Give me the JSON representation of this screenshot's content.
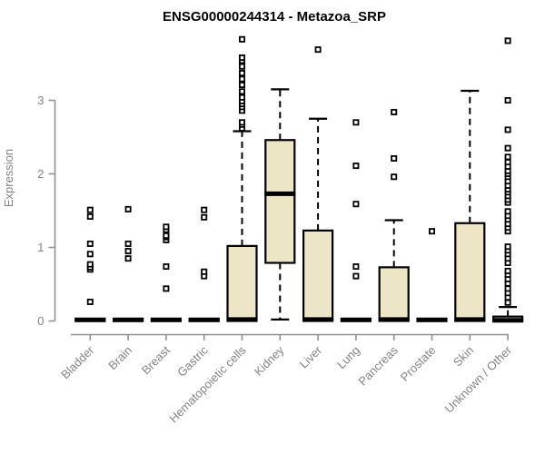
{
  "title": "ENSG00000244314 - Metazoa_SRP",
  "chart_data": {
    "type": "boxplot",
    "title": "ENSG00000244314 - Metazoa_SRP",
    "ylabel": "Expression",
    "xlabel": "",
    "ylim": [
      0,
      3.9
    ],
    "yticks": [
      "0",
      "1",
      "2",
      "3"
    ],
    "grid": false,
    "legend": false,
    "categories": [
      "Bladder",
      "Brain",
      "Breast",
      "Gastric",
      "Hematopoietic cells",
      "Kidney",
      "Liver",
      "Lung",
      "Pancreas",
      "Prostate",
      "Skin",
      "Unknown / Other"
    ],
    "series": [
      {
        "name": "Bladder",
        "q1": 0,
        "median": 0.015,
        "q3": 0.03,
        "whisker_low": 0,
        "whisker_high": 0.03,
        "outliers": [
          0.26,
          0.7,
          0.73,
          0.77,
          0.91,
          1.05,
          1.42,
          1.51
        ]
      },
      {
        "name": "Brain",
        "q1": 0,
        "median": 0.015,
        "q3": 0.03,
        "whisker_low": 0,
        "whisker_high": 0.03,
        "outliers": [
          0.85,
          0.95,
          1.05,
          1.52
        ]
      },
      {
        "name": "Breast",
        "q1": 0,
        "median": 0.015,
        "q3": 0.03,
        "whisker_low": 0,
        "whisker_high": 0.03,
        "outliers": [
          0.44,
          0.74,
          1.1,
          1.14,
          1.16,
          1.24,
          1.28
        ]
      },
      {
        "name": "Gastric",
        "q1": 0,
        "median": 0.015,
        "q3": 0.03,
        "whisker_low": 0,
        "whisker_high": 0.03,
        "outliers": [
          0.61,
          0.67,
          1.41,
          1.51
        ]
      },
      {
        "name": "Hematopoietic cells",
        "q1": 0,
        "median": 0.02,
        "q3": 1.02,
        "whisker_low": 0,
        "whisker_high": 2.58,
        "outliers": [
          2.62,
          2.67,
          2.7,
          2.86,
          2.91,
          2.95,
          2.99,
          3.04,
          3.12,
          3.21,
          3.29,
          3.37,
          3.46,
          3.54,
          3.58,
          3.83
        ]
      },
      {
        "name": "Kidney",
        "q1": 0.79,
        "median": 1.73,
        "q3": 2.46,
        "whisker_low": 0.02,
        "whisker_high": 3.15,
        "outliers": []
      },
      {
        "name": "Liver",
        "q1": 0,
        "median": 0.02,
        "q3": 1.23,
        "whisker_low": 0,
        "whisker_high": 2.75,
        "outliers": [
          3.69
        ]
      },
      {
        "name": "Lung",
        "q1": 0,
        "median": 0.015,
        "q3": 0.03,
        "whisker_low": 0,
        "whisker_high": 0.03,
        "outliers": [
          0.61,
          0.74,
          1.59,
          2.11,
          2.7
        ]
      },
      {
        "name": "Pancreas",
        "q1": 0,
        "median": 0.02,
        "q3": 0.73,
        "whisker_low": 0,
        "whisker_high": 1.37,
        "outliers": [
          1.96,
          2.21,
          2.84
        ]
      },
      {
        "name": "Prostate",
        "q1": 0,
        "median": 0.015,
        "q3": 0.03,
        "whisker_low": 0,
        "whisker_high": 0.03,
        "outliers": [
          1.22
        ]
      },
      {
        "name": "Skin",
        "q1": 0,
        "median": 0.02,
        "q3": 1.33,
        "whisker_low": 0,
        "whisker_high": 3.13,
        "outliers": []
      },
      {
        "name": "Unknown / Other",
        "q1": 0,
        "median": 0.01,
        "q3": 0.06,
        "whisker_low": 0,
        "whisker_high": 0.19,
        "outliers": [
          0.25,
          0.32,
          0.38,
          0.44,
          0.51,
          0.57,
          0.63,
          0.68,
          0.79,
          0.85,
          0.91,
          0.96,
          1.01,
          1.22,
          1.27,
          1.32,
          1.38,
          1.43,
          1.49,
          1.61,
          1.65,
          1.7,
          1.75,
          1.79,
          1.84,
          1.9,
          1.96,
          2.0,
          2.04,
          2.1,
          2.16,
          2.23,
          2.35,
          2.6,
          3.0,
          3.81
        ]
      }
    ],
    "colors": {
      "box_fill": "#EDE6C6",
      "box_stroke": "#000000",
      "median": "#000000",
      "whisker": "#000000",
      "outlier_stroke": "#000000",
      "outlier_fill": "#ffffff",
      "axis": "#919191",
      "tick_label": "#838383",
      "title": "#000000",
      "background": "#ffffff"
    }
  }
}
